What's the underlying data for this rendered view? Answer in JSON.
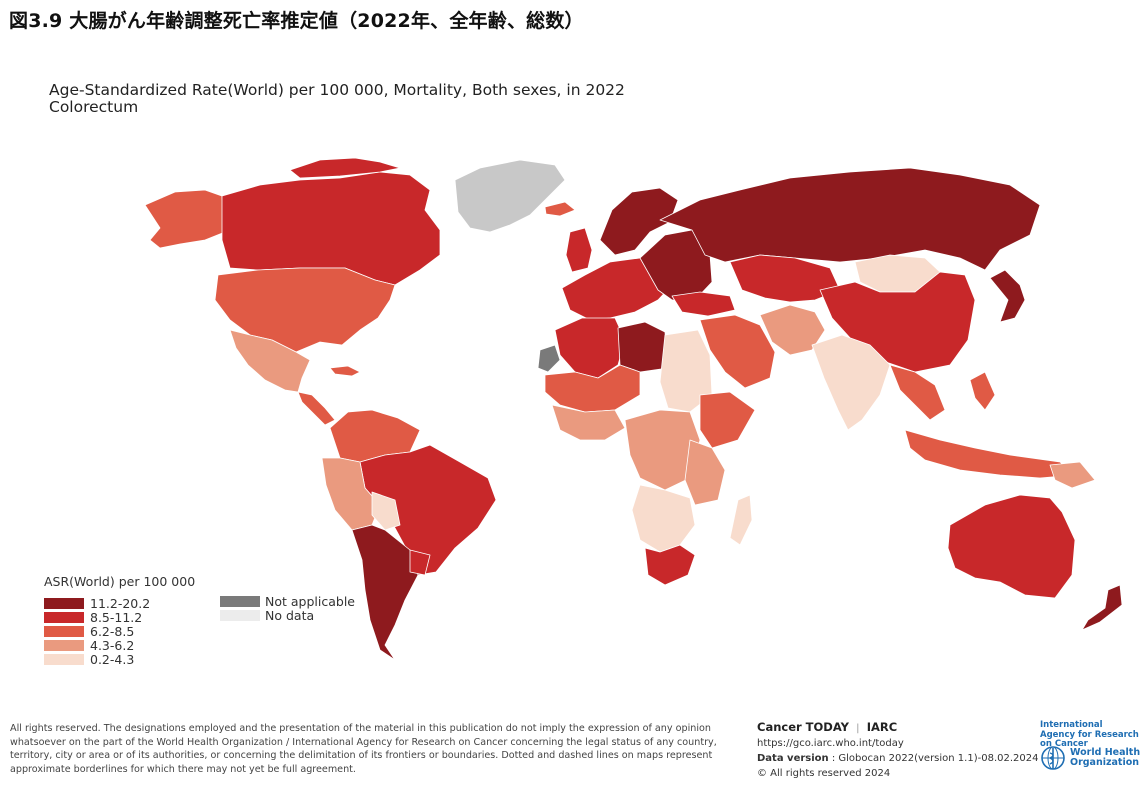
{
  "figure_title": "図3.9 大腸がん年齢調整死亡率推定値（2022年、全年齢、総数）",
  "map": {
    "title_line1": "Age-Standardized Rate(World) per 100 000, Mortality, Both sexes, in 2022",
    "title_line2": "Colorectum"
  },
  "colors": {
    "c1": "#8e1a1e",
    "c2": "#c8282a",
    "c3": "#e05a45",
    "c4": "#ea9a7f",
    "c5": "#f8dccd",
    "na": "#7a7a7a",
    "nodata": "#e8e8e8",
    "greenland": "#c8c8c8"
  },
  "legend": {
    "title": "ASR(World) per 100 000",
    "items": [
      {
        "label": "11.2-20.2",
        "color": "#8e1a1e"
      },
      {
        "label": "8.5-11.2",
        "color": "#c8282a"
      },
      {
        "label": "6.2-8.5",
        "color": "#e05a45"
      },
      {
        "label": "4.3-6.2",
        "color": "#ea9a7f"
      },
      {
        "label": "0.2-4.3",
        "color": "#f8dccd"
      }
    ],
    "extra": [
      {
        "label": "Not applicable",
        "color": "#7a7a7a"
      },
      {
        "label": "No data",
        "color": "#ececec"
      }
    ]
  },
  "footer": {
    "disclaimer": "All rights reserved. The designations employed and the presentation of the material in this publication do not imply the expression of any opinion whatsoever on the part of the World Health Organization / International Agency for Research on Cancer concerning the legal status of any country, territory, city or area or of its authorities, or concerning the delimitation of its frontiers or boundaries. Dotted and dashed lines on maps represent approximate borderlines for which there may not yet be full agreement.",
    "source_title": "Cancer TODAY",
    "source_sep": "|",
    "source_org": "IARC",
    "url": "https://gco.iarc.who.int/today",
    "data_version_label": "Data version",
    "data_version_value": " : Globocan 2022(version 1.1)-08.02.2024",
    "copyright": "© All rights reserved 2024",
    "iarc_logo_text": "International Agency for Research on Cancer",
    "who_logo_line1": "World Health",
    "who_logo_line2": "Organization"
  }
}
